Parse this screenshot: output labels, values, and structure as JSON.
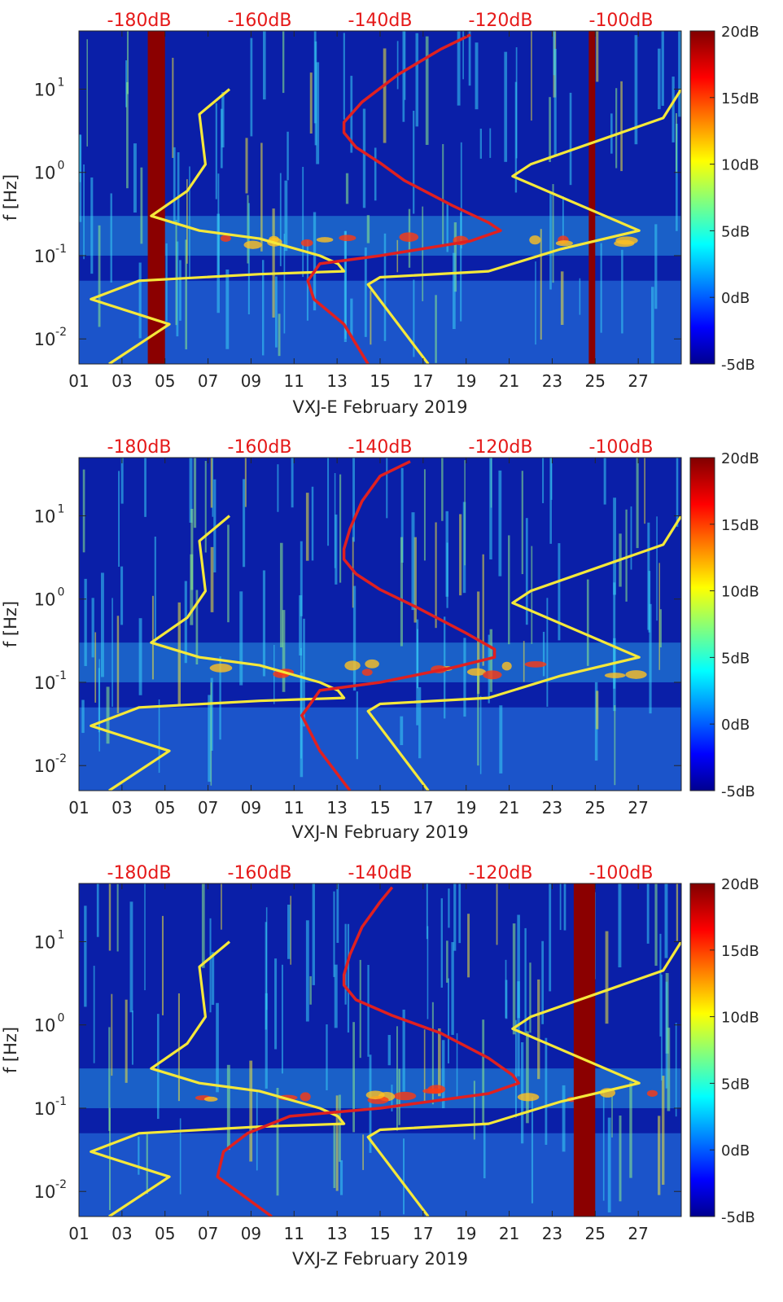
{
  "figure": {
    "colorbar": {
      "ticks": [
        "20dB",
        "15dB",
        "10dB",
        "5dB",
        "0dB",
        "-5dB"
      ],
      "range_db": [
        -5,
        20
      ]
    },
    "psd_top_axis": {
      "ticks": [
        "-180dB",
        "-160dB",
        "-140dB",
        "-120dB",
        "-100dB"
      ],
      "range_db": [
        -190,
        -90
      ]
    },
    "colors": {
      "noise_model": "#f5e83a",
      "psd_curve": "#e02020",
      "top_labels": "#e51919",
      "background_field": "#0a1fa8"
    }
  },
  "chart_data": [
    {
      "type": "heatmap",
      "title": "",
      "xlabel": "VXJ-E February 2019",
      "ylabel": "f [Hz]",
      "x_tick_labels": [
        "01",
        "03",
        "05",
        "07",
        "09",
        "11",
        "13",
        "15",
        "17",
        "19",
        "21",
        "23",
        "25",
        "27"
      ],
      "x_range_days": [
        1,
        29
      ],
      "y_tick_labels": [
        "10",
        "10",
        "10",
        "10"
      ],
      "y_tick_exponents": [
        "1",
        "0",
        "-1",
        "-2"
      ],
      "y_range_hz": [
        0.005,
        50
      ],
      "gaps_days": [
        [
          4.2,
          5.0
        ],
        [
          24.7,
          25.0
        ]
      ],
      "series": [
        {
          "name": "noise model (yellow)",
          "psd_db": [
            -165,
            -170,
            -169,
            -172,
            -178,
            -170,
            -160,
            -150,
            -147,
            -146,
            -160,
            -180,
            -188,
            -175,
            -185
          ],
          "freq_hz": [
            10,
            5,
            1.25,
            0.6,
            0.3,
            0.2,
            0.16,
            0.1,
            0.08,
            0.065,
            0.06,
            0.05,
            0.03,
            0.015,
            0.005
          ]
        },
        {
          "name": "noise model upper (yellow)",
          "psd_db": [
            -90,
            -93,
            -115,
            -118,
            -97,
            -110,
            -122,
            -140,
            -142,
            -132
          ],
          "freq_hz": [
            10,
            4.5,
            1.25,
            0.9,
            0.2,
            0.12,
            0.065,
            0.055,
            0.045,
            0.005
          ]
        },
        {
          "name": "station PSD (red)",
          "psd_db": [
            -125,
            -130,
            -137,
            -143,
            -146,
            -146,
            -144,
            -140,
            -136,
            -128,
            -122,
            -120,
            -125,
            -140,
            -150,
            -152,
            -151,
            -146,
            -142
          ],
          "freq_hz": [
            45,
            30,
            15,
            7,
            4,
            3,
            2,
            1.3,
            0.8,
            0.4,
            0.25,
            0.2,
            0.15,
            0.1,
            0.08,
            0.05,
            0.03,
            0.015,
            0.005
          ]
        }
      ]
    },
    {
      "type": "heatmap",
      "title": "",
      "xlabel": "VXJ-N February 2019",
      "ylabel": "f [Hz]",
      "x_tick_labels": [
        "01",
        "03",
        "05",
        "07",
        "09",
        "11",
        "13",
        "15",
        "17",
        "19",
        "21",
        "23",
        "25",
        "27"
      ],
      "x_range_days": [
        1,
        29
      ],
      "y_tick_labels": [
        "10",
        "10",
        "10",
        "10"
      ],
      "y_tick_exponents": [
        "1",
        "0",
        "-1",
        "-2"
      ],
      "y_range_hz": [
        0.005,
        50
      ],
      "gaps_days": [],
      "series": [
        {
          "name": "noise model (yellow)",
          "psd_db": [
            -165,
            -170,
            -169,
            -172,
            -178,
            -170,
            -160,
            -150,
            -147,
            -146,
            -160,
            -180,
            -188,
            -175,
            -185
          ],
          "freq_hz": [
            10,
            5,
            1.25,
            0.6,
            0.3,
            0.2,
            0.16,
            0.1,
            0.08,
            0.065,
            0.06,
            0.05,
            0.03,
            0.015,
            0.005
          ]
        },
        {
          "name": "noise model upper (yellow)",
          "psd_db": [
            -90,
            -93,
            -115,
            -118,
            -97,
            -110,
            -122,
            -140,
            -142,
            -132
          ],
          "freq_hz": [
            10,
            4.5,
            1.25,
            0.9,
            0.2,
            0.12,
            0.065,
            0.055,
            0.045,
            0.005
          ]
        },
        {
          "name": "station PSD (red)",
          "psd_db": [
            -135,
            -140,
            -143,
            -145,
            -146,
            -146,
            -144,
            -140,
            -134,
            -126,
            -121,
            -121,
            -128,
            -140,
            -150,
            -152,
            -153,
            -150,
            -145
          ],
          "freq_hz": [
            45,
            30,
            15,
            7,
            4,
            3,
            2,
            1.3,
            0.8,
            0.4,
            0.25,
            0.2,
            0.15,
            0.1,
            0.08,
            0.05,
            0.04,
            0.015,
            0.005
          ]
        }
      ]
    },
    {
      "type": "heatmap",
      "title": "",
      "xlabel": "VXJ-Z February 2019",
      "ylabel": "f [Hz]",
      "x_tick_labels": [
        "01",
        "03",
        "05",
        "07",
        "09",
        "11",
        "13",
        "15",
        "17",
        "19",
        "21",
        "23",
        "25",
        "27"
      ],
      "x_range_days": [
        1,
        29
      ],
      "y_tick_labels": [
        "10",
        "10",
        "10",
        "10"
      ],
      "y_tick_exponents": [
        "1",
        "0",
        "-1",
        "-2"
      ],
      "y_range_hz": [
        0.005,
        50
      ],
      "gaps_days": [
        [
          24.0,
          25.0
        ]
      ],
      "series": [
        {
          "name": "noise model (yellow)",
          "psd_db": [
            -165,
            -170,
            -169,
            -172,
            -178,
            -170,
            -160,
            -150,
            -147,
            -146,
            -160,
            -180,
            -188,
            -175,
            -185
          ],
          "freq_hz": [
            10,
            5,
            1.25,
            0.6,
            0.3,
            0.2,
            0.16,
            0.1,
            0.08,
            0.065,
            0.06,
            0.05,
            0.03,
            0.015,
            0.005
          ]
        },
        {
          "name": "noise model upper (yellow)",
          "psd_db": [
            -90,
            -93,
            -115,
            -118,
            -97,
            -110,
            -122,
            -140,
            -142,
            -132
          ],
          "freq_hz": [
            10,
            4.5,
            1.25,
            0.9,
            0.2,
            0.12,
            0.065,
            0.055,
            0.045,
            0.005
          ]
        },
        {
          "name": "station PSD (red)",
          "psd_db": [
            -138,
            -140,
            -143,
            -145,
            -146,
            -146,
            -144,
            -138,
            -130,
            -122,
            -118,
            -117,
            -122,
            -140,
            -155,
            -162,
            -166,
            -167,
            -158
          ],
          "freq_hz": [
            45,
            30,
            15,
            7,
            4,
            3,
            2,
            1.3,
            0.8,
            0.4,
            0.25,
            0.2,
            0.15,
            0.1,
            0.08,
            0.05,
            0.03,
            0.015,
            0.005
          ]
        }
      ]
    }
  ]
}
